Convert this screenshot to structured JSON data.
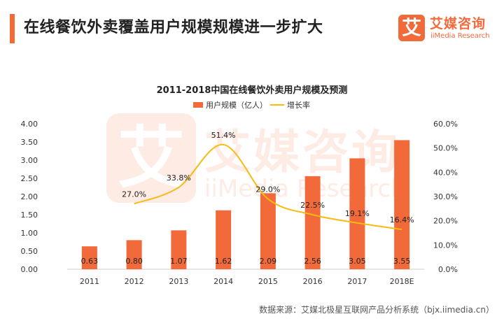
{
  "header": {
    "title": "在线餐饮外卖覆盖用户规模规模进一步扩大"
  },
  "logo": {
    "mark": "艾",
    "name_cn": "艾媒咨询",
    "name_en": "iiMedia Research"
  },
  "colors": {
    "accent": "#f2693a",
    "bar": "#f2693a",
    "line": "#f8bb14",
    "text": "#222222",
    "axis": "#cccccc"
  },
  "chart_data": {
    "type": "bar",
    "title": "2011-2018中国在线餐饮外卖用户规模及预测",
    "categories": [
      "2011",
      "2012",
      "2013",
      "2014",
      "2015",
      "2016",
      "2017",
      "2018E"
    ],
    "series": [
      {
        "name": "用户规模（亿人）",
        "type": "bar",
        "axis": "left",
        "values": [
          0.63,
          0.8,
          1.07,
          1.62,
          2.09,
          2.56,
          3.05,
          3.55
        ],
        "labels": [
          "0.63",
          "0.80",
          "1.07",
          "1.62",
          "2.09",
          "2.56",
          "3.05",
          "3.55"
        ]
      },
      {
        "name": "增长率",
        "type": "line",
        "axis": "right",
        "values": [
          null,
          27.0,
          33.8,
          51.4,
          29.0,
          22.5,
          19.1,
          16.4
        ],
        "labels": [
          null,
          "27.0%",
          "33.8%",
          "51.4%",
          "29.0%",
          "22.5%",
          "19.1%",
          "16.4%"
        ]
      }
    ],
    "y_left": {
      "range": [
        0,
        4
      ],
      "ticks": [
        "0.00",
        "0.50",
        "1.00",
        "1.50",
        "2.00",
        "2.50",
        "3.00",
        "3.50",
        "4.00"
      ]
    },
    "y_right": {
      "range": [
        0,
        60
      ],
      "ticks": [
        "0.0%",
        "10.0%",
        "20.0%",
        "30.0%",
        "40.0%",
        "50.0%",
        "60.0%"
      ]
    },
    "legend": "top-center",
    "grid": false
  },
  "footer": {
    "source": "数据来源：艾媒北极星互联网产品分析系统（bjx.iimedia.cn）"
  }
}
